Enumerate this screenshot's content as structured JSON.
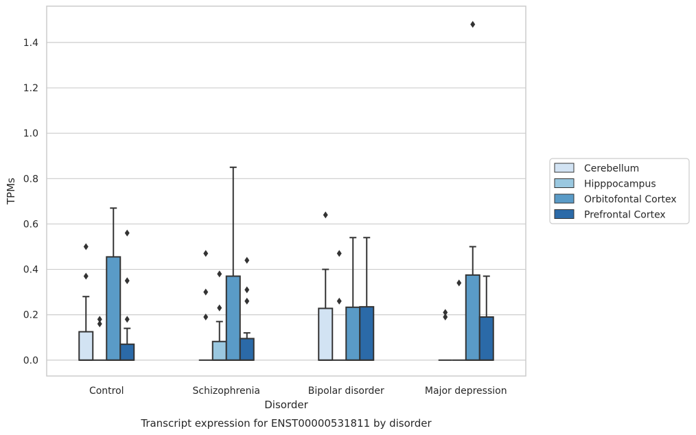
{
  "chart_data": {
    "type": "box",
    "xlabel": "Disorder",
    "ylabel": "TPMs",
    "caption": "Transcript expression for ENST00000531811 by disorder",
    "ylim": [
      -0.07,
      1.56
    ],
    "yticks": [
      "0.0",
      "0.2",
      "0.4",
      "0.6",
      "0.8",
      "1.0",
      "1.2",
      "1.4"
    ],
    "grid": true,
    "legend_position": "right",
    "categories": [
      "Control",
      "Schizophrenia",
      "Bipolar disorder",
      "Major depression"
    ],
    "series": [
      {
        "name": "Cerebellum",
        "color": "#d2e3f3",
        "boxes": [
          {
            "q1": 0.0,
            "median": 0.0,
            "q3": 0.125,
            "whisker_low": 0.0,
            "whisker_high": 0.28,
            "outliers": [
              0.5,
              0.37
            ]
          },
          {
            "q1": 0.0,
            "median": 0.0,
            "q3": 0.0,
            "whisker_low": 0.0,
            "whisker_high": 0.0,
            "outliers": [
              0.47,
              0.3,
              0.19
            ]
          },
          {
            "q1": 0.0,
            "median": 0.0,
            "q3": 0.228,
            "whisker_low": 0.0,
            "whisker_high": 0.4,
            "outliers": [
              0.64
            ]
          },
          {
            "q1": 0.0,
            "median": 0.0,
            "q3": 0.0,
            "whisker_low": 0.0,
            "whisker_high": 0.0,
            "outliers": [
              0.21,
              0.19
            ]
          }
        ]
      },
      {
        "name": "Hipppocampus",
        "color": "#9ac8e0",
        "boxes": [
          {
            "q1": 0.0,
            "median": 0.0,
            "q3": 0.0,
            "whisker_low": 0.0,
            "whisker_high": 0.0,
            "outliers": [
              0.18,
              0.16
            ]
          },
          {
            "q1": 0.0,
            "median": 0.0,
            "q3": 0.082,
            "whisker_low": 0.0,
            "whisker_high": 0.17,
            "outliers": [
              0.38,
              0.23
            ]
          },
          {
            "q1": 0.0,
            "median": 0.0,
            "q3": 0.0,
            "whisker_low": 0.0,
            "whisker_high": 0.0,
            "outliers": [
              0.47,
              0.26
            ]
          },
          {
            "q1": 0.0,
            "median": 0.0,
            "q3": 0.0,
            "whisker_low": 0.0,
            "whisker_high": 0.0,
            "outliers": [
              0.34
            ]
          }
        ]
      },
      {
        "name": "Orbitofontal Cortex",
        "color": "#5a9bc7",
        "boxes": [
          {
            "q1": 0.0,
            "median": 0.0,
            "q3": 0.455,
            "whisker_low": 0.0,
            "whisker_high": 0.67,
            "outliers": []
          },
          {
            "q1": 0.0,
            "median": 0.0,
            "q3": 0.37,
            "whisker_low": 0.0,
            "whisker_high": 0.85,
            "outliers": []
          },
          {
            "q1": 0.0,
            "median": 0.0,
            "q3": 0.233,
            "whisker_low": 0.0,
            "whisker_high": 0.54,
            "outliers": []
          },
          {
            "q1": 0.0,
            "median": 0.0,
            "q3": 0.375,
            "whisker_low": 0.0,
            "whisker_high": 0.5,
            "outliers": [
              1.48
            ]
          }
        ]
      },
      {
        "name": "Prefrontal Cortex",
        "color": "#2b6aa8",
        "boxes": [
          {
            "q1": 0.0,
            "median": 0.0,
            "q3": 0.07,
            "whisker_low": 0.0,
            "whisker_high": 0.14,
            "outliers": [
              0.56,
              0.35,
              0.18
            ]
          },
          {
            "q1": 0.0,
            "median": 0.0,
            "q3": 0.095,
            "whisker_low": 0.0,
            "whisker_high": 0.12,
            "outliers": [
              0.44,
              0.31,
              0.26
            ]
          },
          {
            "q1": 0.0,
            "median": 0.0,
            "q3": 0.235,
            "whisker_low": 0.0,
            "whisker_high": 0.54,
            "outliers": []
          },
          {
            "q1": 0.0,
            "median": 0.0,
            "q3": 0.19,
            "whisker_low": 0.0,
            "whisker_high": 0.37,
            "outliers": []
          }
        ]
      }
    ]
  }
}
